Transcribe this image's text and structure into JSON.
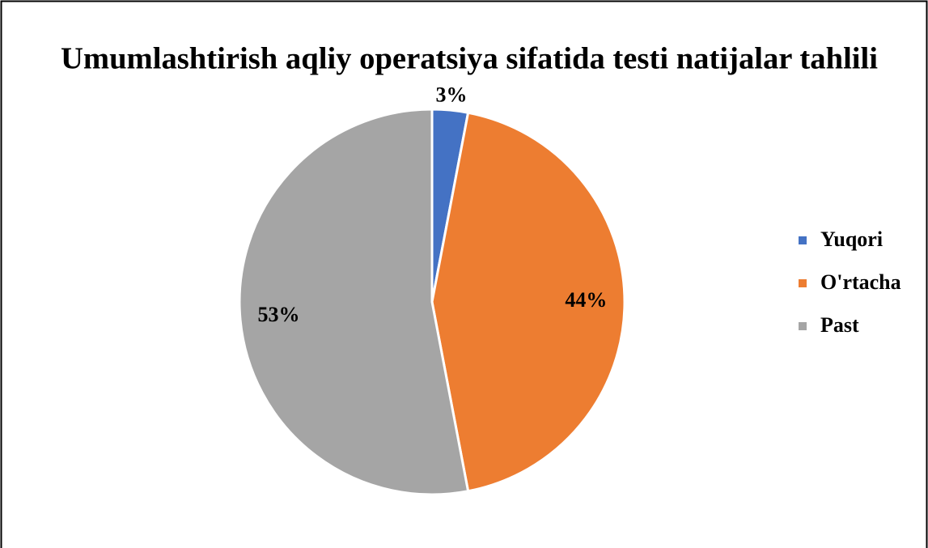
{
  "chart_data": {
    "type": "pie",
    "title": "Umumlashtirish aqliy operatsiya sifatida testi natijalar tahlili",
    "categories": [
      "Yuqori",
      "O'rtacha",
      "Past"
    ],
    "values": [
      3,
      44,
      53
    ],
    "value_labels": [
      "3%",
      "44%",
      "53%"
    ],
    "colors": [
      "#4472c4",
      "#ed7d31",
      "#a5a5a5"
    ],
    "legend": "right"
  }
}
